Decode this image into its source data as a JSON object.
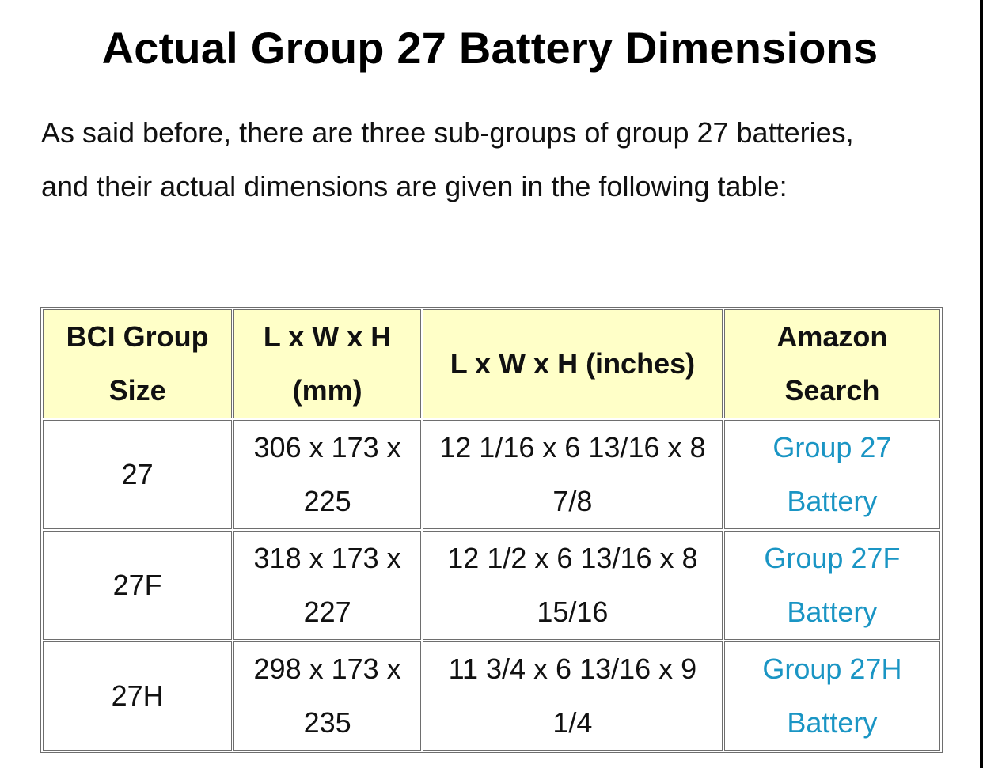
{
  "article": {
    "title": "Actual Group 27 Battery Dimensions",
    "intro": "As said before, there are three sub-groups of group 27 batteries, and their actual dimensions are given in the following table:"
  },
  "table": {
    "headers": {
      "group": "BCI Group Size",
      "mm": "L x W x H (mm)",
      "inches": "L x W x H (inches)",
      "amazon": "Amazon Search"
    },
    "rows": [
      {
        "group": "27",
        "mm": "306 x 173 x 225",
        "inches": "12 1/16 x 6 13/16 x 8 7/8",
        "link": "Group 27 Battery"
      },
      {
        "group": "27F",
        "mm": "318 x 173 x 227",
        "inches": "12 1/2 x 6 13/16 x 8 15/16",
        "link": "Group 27F Battery"
      },
      {
        "group": "27H",
        "mm": "298 x 173 x 235",
        "inches": "11 3/4 x 6 13/16 x 9 1/4",
        "link": "Group 27H Battery"
      }
    ]
  },
  "colors": {
    "header_bg": "#ffffc8",
    "link": "#1a95c4"
  }
}
